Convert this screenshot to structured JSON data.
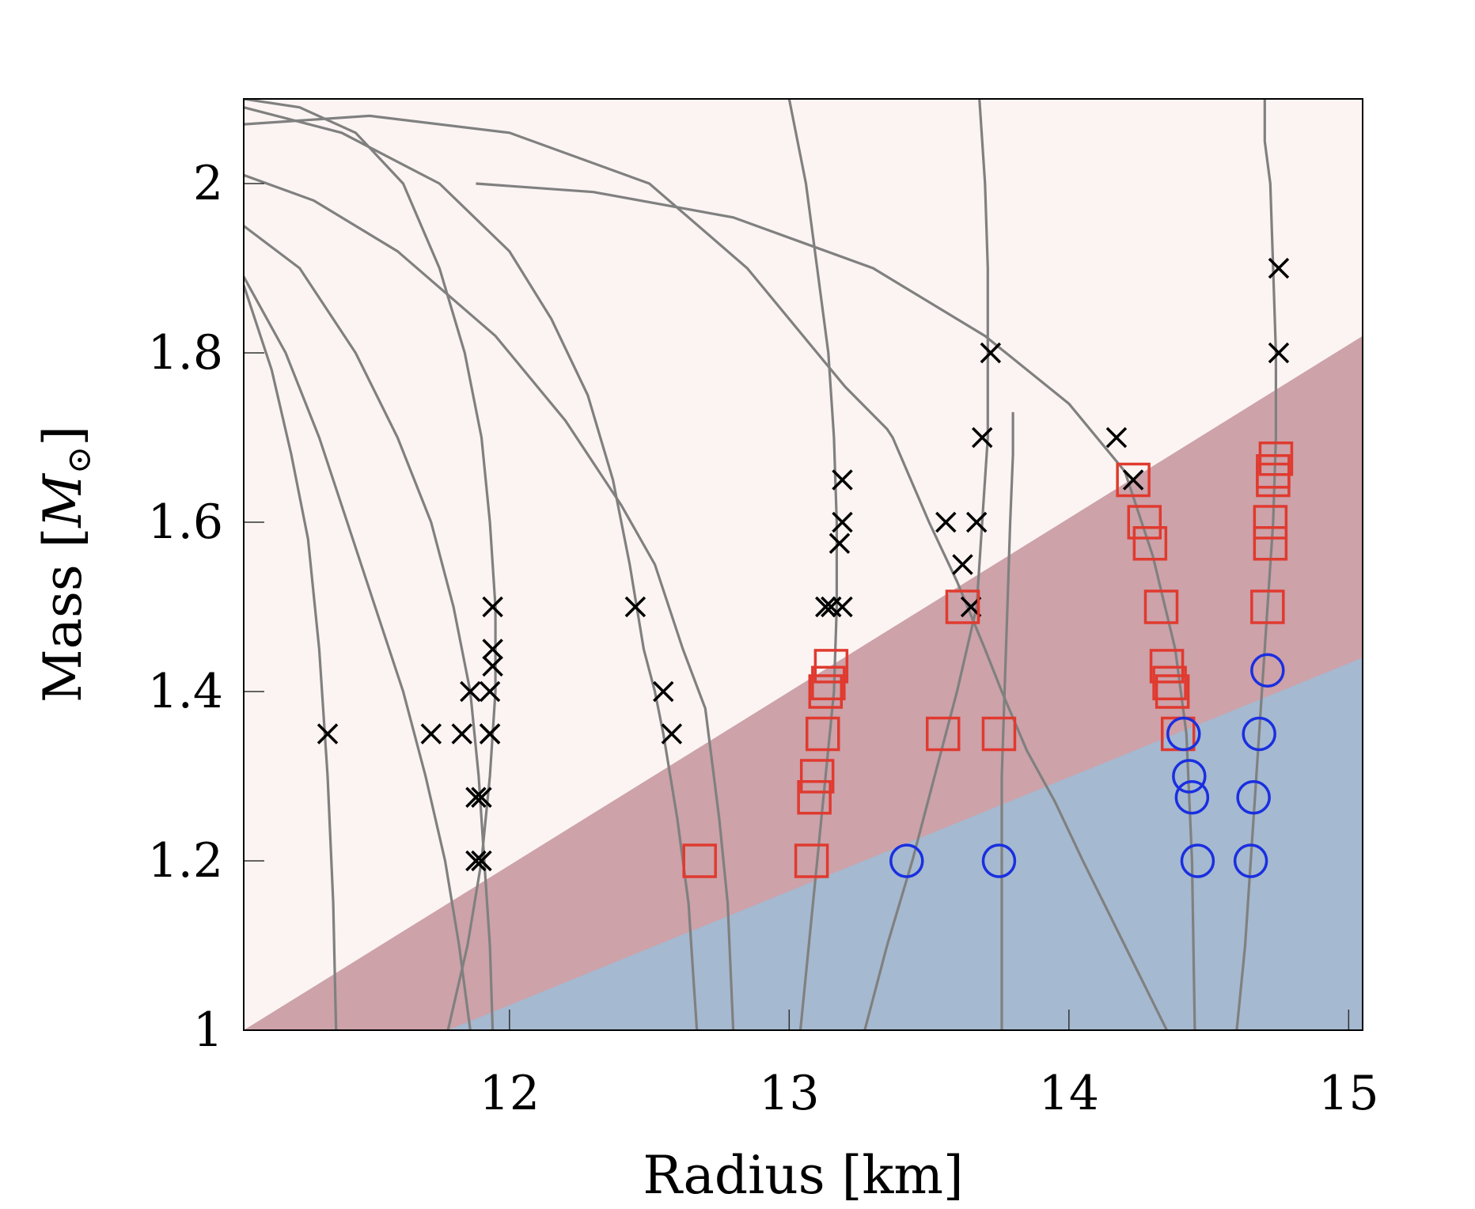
{
  "chart_data": {
    "type": "scatter",
    "xlabel": "Radius [km]",
    "ylabel_text": "Mass [",
    "ylabel_symbol": "M",
    "ylabel_subscript": "⊙",
    "ylabel_close": "]",
    "xlim": [
      11.05,
      15.05
    ],
    "ylim": [
      1.0,
      2.1
    ],
    "x_ticks": [
      12,
      13,
      14,
      15
    ],
    "x_tick_labels": [
      "12",
      "13",
      "14",
      "15"
    ],
    "y_ticks": [
      1.0,
      1.2,
      1.4,
      1.6,
      1.8,
      2.0
    ],
    "y_tick_labels": [
      "1",
      "1.2",
      "1.4",
      "1.6",
      "1.8",
      "2"
    ],
    "grid": false,
    "legend": "none",
    "colors": {
      "background_region": "#fbf4f2",
      "middle_region": "#cda2a9",
      "lower_region": "#a5b9d0",
      "curve": "#808080",
      "cross": "#000000",
      "square": "#e03a2f",
      "circle": "#1a2fe0"
    },
    "regions": [
      {
        "name": "middle",
        "lower_boundary": [
          [
            11.05,
            1.0
          ],
          [
            15.05,
            1.82
          ]
        ]
      },
      {
        "name": "lower",
        "upper_boundary": [
          [
            11.78,
            1.0
          ],
          [
            15.05,
            1.44
          ]
        ]
      }
    ],
    "curves": [
      [
        [
          11.05,
          2.07
        ],
        [
          11.5,
          2.08
        ],
        [
          12.0,
          2.06
        ],
        [
          12.5,
          2.0
        ],
        [
          12.85,
          1.9
        ],
        [
          13.05,
          1.82
        ],
        [
          13.2,
          1.76
        ],
        [
          13.35,
          1.71
        ],
        [
          13.37,
          1.7
        ],
        [
          13.5,
          1.6
        ],
        [
          13.6,
          1.53
        ],
        [
          13.7,
          1.45
        ],
        [
          13.76,
          1.4
        ],
        [
          13.85,
          1.33
        ],
        [
          13.95,
          1.27
        ],
        [
          14.05,
          1.2
        ],
        [
          14.2,
          1.1
        ],
        [
          14.35,
          1.0
        ]
      ],
      [
        [
          11.88,
          2.0
        ],
        [
          12.3,
          1.99
        ],
        [
          12.8,
          1.96
        ],
        [
          13.3,
          1.9
        ],
        [
          13.7,
          1.82
        ],
        [
          14.0,
          1.74
        ],
        [
          14.2,
          1.66
        ],
        [
          14.3,
          1.56
        ],
        [
          14.38,
          1.45
        ],
        [
          14.42,
          1.35
        ],
        [
          14.44,
          1.2
        ],
        [
          14.45,
          1.0
        ]
      ],
      [
        [
          11.05,
          2.09
        ],
        [
          11.4,
          2.06
        ],
        [
          11.75,
          2.0
        ],
        [
          12.0,
          1.92
        ],
        [
          12.15,
          1.84
        ],
        [
          12.28,
          1.75
        ],
        [
          12.37,
          1.65
        ],
        [
          12.43,
          1.55
        ],
        [
          12.48,
          1.45
        ],
        [
          12.52,
          1.4
        ],
        [
          12.55,
          1.35
        ],
        [
          12.6,
          1.25
        ],
        [
          12.64,
          1.15
        ],
        [
          12.66,
          1.05
        ],
        [
          12.67,
          1.0
        ]
      ],
      [
        [
          11.05,
          2.01
        ],
        [
          11.3,
          1.98
        ],
        [
          11.6,
          1.92
        ],
        [
          11.95,
          1.82
        ],
        [
          12.2,
          1.72
        ],
        [
          12.4,
          1.62
        ],
        [
          12.52,
          1.55
        ],
        [
          12.62,
          1.45
        ],
        [
          12.7,
          1.38
        ],
        [
          12.75,
          1.25
        ],
        [
          12.78,
          1.15
        ],
        [
          12.8,
          1.0
        ]
      ],
      [
        [
          11.05,
          1.95
        ],
        [
          11.25,
          1.9
        ],
        [
          11.45,
          1.8
        ],
        [
          11.6,
          1.7
        ],
        [
          11.72,
          1.6
        ],
        [
          11.8,
          1.5
        ],
        [
          11.86,
          1.4
        ],
        [
          11.89,
          1.3
        ],
        [
          11.91,
          1.2
        ],
        [
          11.93,
          1.1
        ],
        [
          11.94,
          1.0
        ]
      ],
      [
        [
          11.05,
          1.89
        ],
        [
          11.2,
          1.8
        ],
        [
          11.32,
          1.7
        ],
        [
          11.42,
          1.6
        ],
        [
          11.52,
          1.5
        ],
        [
          11.62,
          1.4
        ],
        [
          11.7,
          1.3
        ],
        [
          11.77,
          1.2
        ],
        [
          11.82,
          1.1
        ],
        [
          11.86,
          1.0
        ]
      ],
      [
        [
          11.05,
          1.88
        ],
        [
          11.15,
          1.78
        ],
        [
          11.22,
          1.68
        ],
        [
          11.28,
          1.58
        ],
        [
          11.32,
          1.45
        ],
        [
          11.35,
          1.3
        ],
        [
          11.37,
          1.15
        ],
        [
          11.38,
          1.0
        ]
      ],
      [
        [
          11.05,
          2.1
        ],
        [
          11.25,
          2.09
        ],
        [
          11.45,
          2.06
        ],
        [
          11.62,
          2.0
        ],
        [
          11.75,
          1.9
        ],
        [
          11.84,
          1.8
        ],
        [
          11.9,
          1.7
        ],
        [
          11.93,
          1.6
        ],
        [
          11.95,
          1.5
        ],
        [
          11.95,
          1.4
        ],
        [
          11.93,
          1.3
        ],
        [
          11.9,
          1.2
        ],
        [
          11.85,
          1.1
        ],
        [
          11.78,
          1.0
        ]
      ],
      [
        [
          13.0,
          2.1
        ],
        [
          13.06,
          2.0
        ],
        [
          13.1,
          1.9
        ],
        [
          13.14,
          1.8
        ],
        [
          13.16,
          1.7
        ],
        [
          13.17,
          1.6
        ],
        [
          13.17,
          1.5
        ],
        [
          13.16,
          1.4
        ],
        [
          13.13,
          1.3
        ],
        [
          13.1,
          1.2
        ],
        [
          13.07,
          1.1
        ],
        [
          13.04,
          1.0
        ]
      ],
      [
        [
          13.68,
          2.1
        ],
        [
          13.7,
          2.0
        ],
        [
          13.71,
          1.9
        ],
        [
          13.71,
          1.8
        ],
        [
          13.71,
          1.7
        ],
        [
          13.69,
          1.6
        ],
        [
          13.67,
          1.5
        ],
        [
          13.6,
          1.4
        ],
        [
          13.52,
          1.3
        ],
        [
          13.44,
          1.2
        ],
        [
          13.35,
          1.1
        ],
        [
          13.27,
          1.0
        ]
      ],
      [
        [
          14.7,
          2.1
        ],
        [
          14.7,
          2.05
        ],
        [
          14.72,
          2.0
        ],
        [
          14.73,
          1.9
        ],
        [
          14.74,
          1.8
        ],
        [
          14.74,
          1.7
        ],
        [
          14.73,
          1.6
        ],
        [
          14.71,
          1.5
        ],
        [
          14.69,
          1.4
        ],
        [
          14.67,
          1.3
        ],
        [
          14.65,
          1.2
        ],
        [
          14.63,
          1.1
        ],
        [
          14.6,
          1.0
        ]
      ],
      [
        [
          13.8,
          1.73
        ],
        [
          13.8,
          1.68
        ],
        [
          13.79,
          1.6
        ],
        [
          13.78,
          1.5
        ],
        [
          13.77,
          1.4
        ],
        [
          13.76,
          1.3
        ],
        [
          13.76,
          1.2
        ],
        [
          13.76,
          1.1
        ],
        [
          13.76,
          1.0
        ]
      ]
    ],
    "series": [
      {
        "marker": "cross",
        "x": [
          11.35,
          11.72,
          11.86,
          11.83,
          11.88,
          11.9,
          11.88,
          11.9,
          11.93,
          11.93,
          11.94,
          11.94,
          11.94,
          11.93,
          12.45,
          12.55,
          12.58,
          13.13,
          13.15,
          13.18,
          13.19,
          13.19,
          13.19,
          13.56,
          13.62,
          13.65,
          13.67,
          13.69,
          13.72,
          14.17,
          14.23,
          14.75,
          14.75
        ],
        "y": [
          1.35,
          1.35,
          1.4,
          1.35,
          1.275,
          1.275,
          1.2,
          1.2,
          1.35,
          1.4,
          1.43,
          1.45,
          1.5,
          1.35,
          1.5,
          1.4,
          1.35,
          1.5,
          1.5,
          1.575,
          1.6,
          1.65,
          1.5,
          1.6,
          1.55,
          1.5,
          1.6,
          1.7,
          1.8,
          1.7,
          1.65,
          1.9,
          1.8
        ]
      },
      {
        "marker": "square",
        "x": [
          12.68,
          13.08,
          13.09,
          13.1,
          13.12,
          13.13,
          13.14,
          13.15,
          13.55,
          13.62,
          13.75,
          14.23,
          14.27,
          14.29,
          14.33,
          14.35,
          14.36,
          14.37,
          14.39,
          14.71,
          14.72,
          14.72,
          14.73,
          14.73,
          14.74
        ],
        "y": [
          1.2,
          1.2,
          1.275,
          1.3,
          1.35,
          1.4,
          1.41,
          1.43,
          1.35,
          1.5,
          1.35,
          1.65,
          1.6,
          1.575,
          1.5,
          1.43,
          1.41,
          1.4,
          1.35,
          1.5,
          1.575,
          1.6,
          1.65,
          1.66,
          1.675
        ]
      },
      {
        "marker": "circle",
        "x": [
          13.42,
          13.75,
          14.41,
          14.43,
          14.44,
          14.46,
          14.65,
          14.66,
          14.68,
          14.71
        ],
        "y": [
          1.2,
          1.2,
          1.35,
          1.3,
          1.275,
          1.2,
          1.2,
          1.275,
          1.35,
          1.425
        ]
      }
    ]
  }
}
